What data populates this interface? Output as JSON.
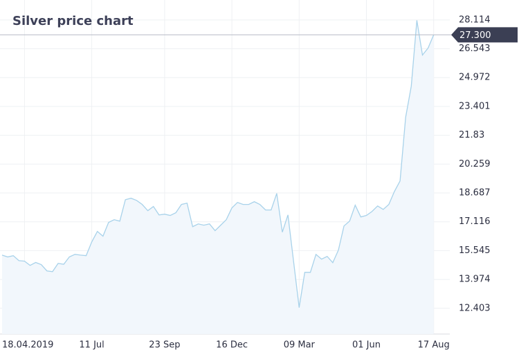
{
  "chart_data": {
    "type": "area",
    "title": "Silver price chart",
    "categories": [
      null,
      null,
      null,
      null,
      "18.04.2019",
      null,
      null,
      null,
      null,
      null,
      null,
      null,
      null,
      null,
      null,
      null,
      "11 Jul",
      null,
      null,
      null,
      null,
      null,
      null,
      null,
      null,
      null,
      null,
      null,
      null,
      "23 Sep",
      null,
      null,
      null,
      null,
      null,
      null,
      null,
      null,
      null,
      null,
      null,
      "16 Dec",
      null,
      null,
      null,
      null,
      null,
      null,
      null,
      null,
      null,
      null,
      null,
      "09 Mar",
      null,
      null,
      null,
      null,
      null,
      null,
      null,
      null,
      null,
      null,
      null,
      "01 Jun",
      null,
      null,
      null,
      null,
      null,
      null,
      null,
      null,
      null,
      null,
      null,
      "17 Aug"
    ],
    "values": [
      15.3,
      15.2,
      15.27,
      15.0,
      14.97,
      14.74,
      14.9,
      14.78,
      14.44,
      14.4,
      14.85,
      14.8,
      15.2,
      15.34,
      15.3,
      15.27,
      16.02,
      16.59,
      16.33,
      17.08,
      17.23,
      17.15,
      18.32,
      18.4,
      18.28,
      18.06,
      17.72,
      17.95,
      17.49,
      17.53,
      17.46,
      17.61,
      18.06,
      18.13,
      16.85,
      17.0,
      16.93,
      17.0,
      16.63,
      16.93,
      17.23,
      17.87,
      18.17,
      18.06,
      18.06,
      18.21,
      18.06,
      17.76,
      17.76,
      18.66,
      16.55,
      17.49,
      14.97,
      12.44,
      14.36,
      14.36,
      15.34,
      15.08,
      15.23,
      14.89,
      15.57,
      16.89,
      17.15,
      18.02,
      17.38,
      17.46,
      17.68,
      17.98,
      17.79,
      18.06,
      18.77,
      19.34,
      22.81,
      24.5,
      28.09,
      26.2,
      26.58,
      27.3
    ],
    "color": "#a8d2ea",
    "ylim": [
      11.0,
      29.2
    ],
    "yticks": [
      12.403,
      13.974,
      15.545,
      17.116,
      18.687,
      20.259,
      21.83,
      23.401,
      24.972,
      26.543,
      28.114
    ],
    "grid": true,
    "current_price": {
      "value": 27.3,
      "label": "27.300"
    }
  }
}
